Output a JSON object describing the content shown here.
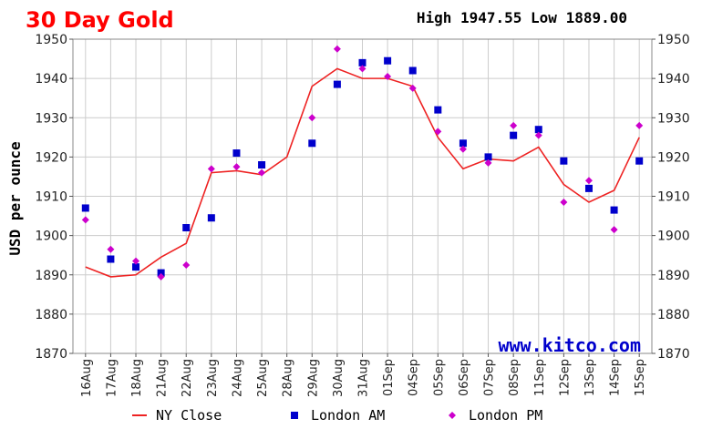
{
  "chart_data": {
    "type": "line",
    "title": "30 Day Gold",
    "high_low": "High 1947.55 Low 1889.00",
    "ylabel": "USD per ounce",
    "watermark": "www.kitco.com",
    "ylim": [
      1870,
      1950
    ],
    "yticks": [
      1870,
      1880,
      1890,
      1900,
      1910,
      1920,
      1930,
      1940,
      1950
    ],
    "grid": true,
    "legend_position": "bottom",
    "categories": [
      "16Aug",
      "17Aug",
      "18Aug",
      "21Aug",
      "22Aug",
      "23Aug",
      "24Aug",
      "25Aug",
      "28Aug",
      "29Aug",
      "30Aug",
      "31Aug",
      "01Sep",
      "04Sep",
      "05Sep",
      "06Sep",
      "07Sep",
      "08Sep",
      "11Sep",
      "12Sep",
      "13Sep",
      "14Sep",
      "15Sep"
    ],
    "series": [
      {
        "name": "NY Close",
        "kind": "line",
        "color": "#ee2222",
        "values": [
          1892,
          1889.5,
          1890,
          1894.5,
          1898,
          1916,
          1916.5,
          1915.5,
          1920,
          1938,
          1942.5,
          1940,
          1940,
          1938,
          1925,
          1917,
          1919.5,
          1919,
          1922.5,
          1913,
          1908.5,
          1911.5,
          1925
        ]
      },
      {
        "name": "London AM",
        "kind": "square",
        "color": "#0000cc",
        "values": [
          1907,
          1894,
          1892,
          1890.5,
          1902,
          1904.5,
          1921,
          1918,
          null,
          1923.5,
          1938.5,
          1944,
          1944.5,
          1942,
          1932,
          1923.5,
          1920,
          1925.5,
          1927,
          1919,
          1912,
          1906.5,
          1919
        ]
      },
      {
        "name": "London PM",
        "kind": "diamond",
        "color": "#cc00cc",
        "values": [
          1904,
          1896.5,
          1893.5,
          1889.5,
          1892.5,
          1917,
          1917.5,
          1916,
          null,
          1930,
          1947.5,
          1942.5,
          1940.5,
          1937.5,
          1926.5,
          1922,
          1918.5,
          1928,
          1925.5,
          1908.5,
          1914,
          1901.5,
          1928
        ]
      }
    ]
  }
}
